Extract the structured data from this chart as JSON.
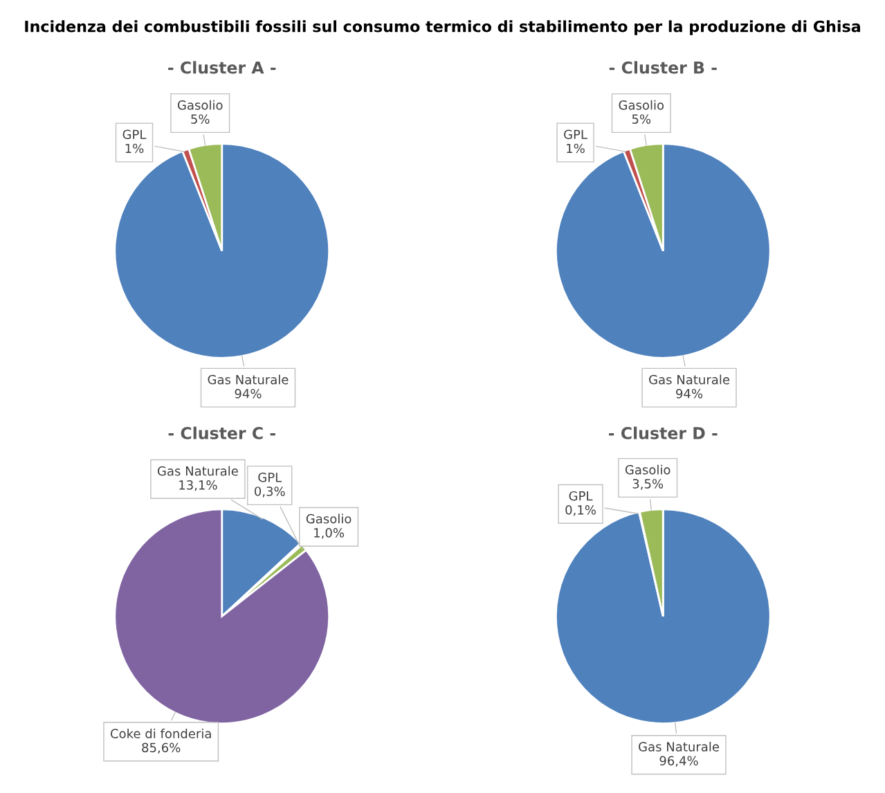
{
  "chart_data": [
    {
      "type": "pie",
      "title": "- Cluster A -",
      "annotations": [
        "Incidenza dei combustibili fossili sul consumo termico di stabilimento per la produzione di Ghisa"
      ],
      "categories": [
        "Gas Naturale",
        "GPL",
        "Gasolio"
      ],
      "values": [
        94,
        1,
        5
      ],
      "colors": [
        "#4f81bd",
        "#c0504d",
        "#9bbb59"
      ],
      "value_labels": [
        "94%",
        "1%",
        "5%"
      ]
    },
    {
      "type": "pie",
      "title": "- Cluster B -",
      "categories": [
        "Gas Naturale",
        "GPL",
        "Gasolio"
      ],
      "values": [
        94,
        1,
        5
      ],
      "colors": [
        "#4f81bd",
        "#c0504d",
        "#9bbb59"
      ],
      "value_labels": [
        "94%",
        "1%",
        "5%"
      ]
    },
    {
      "type": "pie",
      "title": "- Cluster C -",
      "categories": [
        "Gas Naturale",
        "GPL",
        "Gasolio",
        "Coke di fonderia"
      ],
      "values": [
        13.1,
        0.3,
        1.0,
        85.6
      ],
      "colors": [
        "#4f81bd",
        "#c0504d",
        "#9bbb59",
        "#8064a2"
      ],
      "value_labels": [
        "13,1%",
        "0,3%",
        "1,0%",
        "85,6%"
      ]
    },
    {
      "type": "pie",
      "title": "- Cluster D -",
      "categories": [
        "Gas Naturale",
        "GPL",
        "Gasolio"
      ],
      "values": [
        96.4,
        0.1,
        3.5
      ],
      "colors": [
        "#4f81bd",
        "#c0504d",
        "#9bbb59"
      ],
      "value_labels": [
        "96,4%",
        "0,1%",
        "3,5%"
      ]
    }
  ]
}
